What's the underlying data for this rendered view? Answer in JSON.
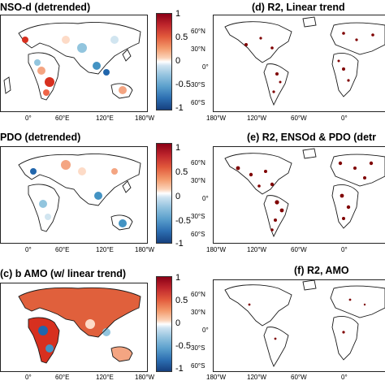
{
  "panels": {
    "a": {
      "title": "NSO-d (detrended)",
      "lon_ticks": [
        "0°",
        "60°E",
        "120°E",
        "180°W"
      ]
    },
    "b": {
      "title": "PDO (detrended)",
      "lon_ticks": [
        "0°",
        "60°E",
        "120°E",
        "180°W"
      ]
    },
    "c": {
      "title": "(c) b AMO (w/ linear trend)",
      "lon_ticks": [
        "0°",
        "60°E",
        "120°E",
        "180°W"
      ]
    },
    "d": {
      "title": "(d) R2, Linear trend",
      "lon_ticks": [
        "180°W",
        "120°W",
        "60°W",
        "0°"
      ],
      "lat_ticks": [
        "60°N",
        "30°N",
        "0°",
        "30°S",
        "60°S"
      ]
    },
    "e": {
      "title": "(e) R2, ENSOd & PDO (detr",
      "lon_ticks": [
        "180°W",
        "120°W",
        "60°W",
        "0°"
      ],
      "lat_ticks": [
        "60°N",
        "30°N",
        "0°",
        "30°S",
        "60°S"
      ]
    },
    "f": {
      "title": "(f) R2, AMO",
      "lon_ticks": [
        "180°W",
        "120°W",
        "60°W",
        "0°"
      ],
      "lat_ticks": [
        "60°N",
        "30°N",
        "0°",
        "30°S",
        "60°S"
      ]
    }
  },
  "colorbar": {
    "ticks": [
      "1",
      "0.5",
      "0",
      "-0.5",
      "-1"
    ]
  },
  "colors": {
    "ocean": "#ffffff",
    "coast": "#1a1a1a",
    "positive": "#d7301f",
    "negative": "#2c7bb6",
    "r2": "#7f0000"
  }
}
